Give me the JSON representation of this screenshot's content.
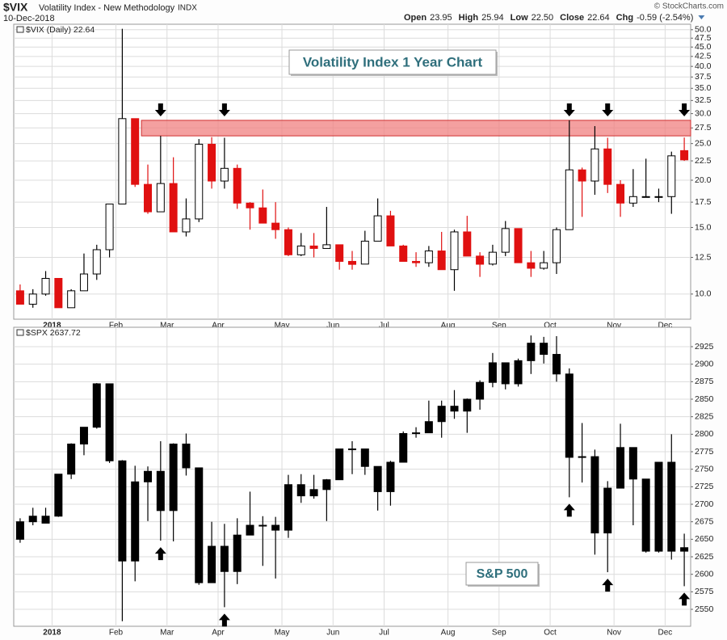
{
  "header": {
    "symbol": "$VIX",
    "name": "Volatility Index - New Methodology",
    "exchange": "INDX",
    "date": "10-Dec-2018",
    "copyright": "© StockCharts.com",
    "quote": [
      {
        "label": "Open",
        "value": "23.95"
      },
      {
        "label": "High",
        "value": "25.94"
      },
      {
        "label": "Low",
        "value": "22.50"
      },
      {
        "label": "Close",
        "value": "22.64"
      },
      {
        "label": "Chg",
        "value": "-0.59 (-2.54%)"
      }
    ]
  },
  "chart_data": [
    {
      "type": "candlestick",
      "legend": "$VIX (Daily) 22.64",
      "title": "Volatility Index 1 Year Chart",
      "log": true,
      "grid": true,
      "band": [
        26.2,
        28.8
      ],
      "band_color": "#f08080",
      "up_color": "#000000",
      "down_color": "#e01010",
      "categories": [
        null,
        null,
        null,
        "2018",
        null,
        null,
        null,
        null,
        "Feb",
        null,
        null,
        null,
        "Mar",
        null,
        null,
        null,
        "Apr",
        null,
        null,
        null,
        null,
        "May",
        null,
        null,
        null,
        "Jun",
        null,
        null,
        null,
        "Jul",
        null,
        null,
        null,
        null,
        "Aug",
        null,
        null,
        null,
        "Sep",
        null,
        null,
        null,
        "Oct",
        null,
        null,
        null,
        null,
        "Nov",
        null,
        null,
        null,
        "Dec",
        null
      ],
      "open": [
        10.2,
        9.4,
        10.0,
        11.0,
        9.2,
        10.2,
        11.3,
        13.1,
        17.3,
        29.1,
        19.5,
        16.5,
        19.6,
        14.6,
        15.8,
        24.9,
        19.9,
        21.5,
        17.4,
        16.9,
        15.4,
        14.8,
        12.7,
        13.4,
        13.2,
        13.5,
        12.2,
        12.0,
        13.8,
        16.1,
        13.4,
        12.2,
        12.1,
        13.0,
        11.6,
        14.6,
        12.6,
        12.0,
        12.9,
        14.9,
        12.1,
        11.7,
        12.1,
        14.8,
        21.3,
        19.9,
        24.2,
        19.5,
        17.4,
        18.1,
        18.1,
        18.1,
        23.95
      ],
      "high": [
        10.6,
        10.3,
        11.5,
        11.0,
        10.3,
        12.8,
        13.5,
        17.3,
        50.3,
        29.1,
        22.0,
        26.2,
        23.0,
        17.9,
        25.7,
        26.0,
        25.9,
        22.0,
        17.5,
        18.9,
        17.5,
        15.0,
        14.5,
        14.5,
        17.0,
        13.5,
        13.0,
        14.7,
        17.9,
        16.6,
        13.5,
        12.9,
        13.4,
        14.6,
        14.8,
        16.1,
        12.9,
        13.5,
        15.6,
        14.9,
        13.0,
        13.0,
        15.0,
        28.8,
        21.6,
        27.8,
        25.9,
        20.0,
        21.4,
        22.8,
        19.0,
        23.8,
        25.94
      ],
      "low": [
        9.4,
        9.2,
        9.9,
        9.2,
        9.2,
        10.2,
        10.9,
        12.5,
        17.3,
        19.2,
        16.3,
        16.5,
        14.6,
        14.2,
        15.5,
        19.0,
        19.0,
        16.8,
        14.8,
        15.4,
        14.0,
        12.6,
        12.6,
        12.5,
        13.2,
        11.6,
        11.6,
        12.0,
        13.8,
        13.4,
        12.2,
        11.8,
        11.8,
        11.6,
        10.2,
        12.6,
        11.1,
        11.9,
        12.6,
        12.1,
        11.1,
        11.6,
        11.3,
        14.8,
        16.0,
        18.3,
        18.5,
        16.0,
        17.0,
        18.0,
        17.5,
        16.3,
        22.5
      ],
      "close": [
        9.4,
        10.0,
        11.0,
        9.2,
        10.2,
        11.3,
        13.1,
        17.3,
        29.1,
        19.5,
        16.5,
        19.6,
        14.6,
        15.8,
        24.9,
        19.9,
        21.5,
        17.4,
        16.9,
        15.4,
        14.8,
        12.7,
        13.4,
        13.2,
        13.5,
        12.2,
        11.98,
        13.8,
        16.1,
        13.4,
        12.2,
        12.1,
        13.0,
        11.6,
        14.6,
        12.6,
        11.99,
        12.9,
        14.9,
        12.1,
        11.7,
        12.1,
        14.8,
        21.3,
        19.9,
        24.2,
        19.5,
        17.4,
        18.1,
        18.1,
        18.1,
        23.2,
        22.64
      ],
      "ylim": [
        8.58,
        51.7
      ],
      "yticks": [
        {
          "value": 10,
          "label": "10.0"
        },
        12.5,
        {
          "value": 15,
          "label": "15.0"
        },
        17.5,
        {
          "value": 20,
          "label": "20.0"
        },
        22.5,
        {
          "value": 25,
          "label": "25.0"
        },
        27.5,
        {
          "value": 30,
          "label": "30.0"
        },
        32.5,
        {
          "value": 35,
          "label": "35.0"
        },
        37.5,
        {
          "value": 40,
          "label": "40.0"
        },
        42.5,
        {
          "value": 45,
          "label": "45.0"
        },
        47.5,
        {
          "value": 50,
          "label": "50.0"
        }
      ]
    },
    {
      "type": "candlestick",
      "legend": "$SPX 2637.72",
      "title": "S&P 500",
      "log": false,
      "grid": true,
      "up_color": "#000000",
      "down_color": "#000000",
      "categories": [
        null,
        null,
        null,
        "2018",
        null,
        null,
        null,
        null,
        "Feb",
        null,
        null,
        null,
        "Mar",
        null,
        null,
        null,
        "Apr",
        null,
        null,
        null,
        null,
        "May",
        null,
        null,
        null,
        "Jun",
        null,
        null,
        null,
        "Jul",
        null,
        null,
        null,
        null,
        "Aug",
        null,
        null,
        null,
        "Sep",
        null,
        null,
        null,
        "Oct",
        null,
        null,
        null,
        null,
        "Nov",
        null,
        null,
        null,
        "Dec",
        null
      ],
      "open": [
        2650,
        2675,
        2683,
        2683,
        2743,
        2786,
        2810,
        2872,
        2762,
        2619,
        2732,
        2747,
        2691,
        2786,
        2752,
        2588,
        2640,
        2604,
        2656,
        2670,
        2670,
        2663,
        2728,
        2712,
        2721,
        2735,
        2779,
        2779,
        2754,
        2718,
        2760,
        2801,
        2802,
        2818,
        2840,
        2833,
        2850,
        2874,
        2902,
        2872,
        2905,
        2930,
        2914,
        2886,
        2767,
        2768,
        2659,
        2723,
        2781,
        2736,
        2633,
        2760,
        2633
      ],
      "high": [
        2680,
        2695,
        2695,
        2743,
        2787,
        2810,
        2873,
        2872,
        2763,
        2755,
        2754,
        2790,
        2787,
        2801,
        2752,
        2675,
        2672,
        2680,
        2718,
        2683,
        2682,
        2742,
        2743,
        2742,
        2736,
        2779,
        2790,
        2779,
        2754,
        2762,
        2804,
        2810,
        2848,
        2848,
        2863,
        2851,
        2877,
        2916,
        2902,
        2908,
        2941,
        2939,
        2940,
        2894,
        2816,
        2778,
        2733,
        2815,
        2781,
        2736,
        2760,
        2800,
        2658
      ],
      "low": [
        2645,
        2670,
        2673,
        2682,
        2736,
        2770,
        2808,
        2759,
        2533,
        2590,
        2676,
        2648,
        2647,
        2741,
        2585,
        2588,
        2553,
        2586,
        2656,
        2612,
        2594,
        2652,
        2702,
        2708,
        2676,
        2735,
        2743,
        2742,
        2691,
        2698,
        2760,
        2795,
        2802,
        2795,
        2822,
        2802,
        2835,
        2867,
        2864,
        2868,
        2886,
        2901,
        2875,
        2710,
        2731,
        2628,
        2603,
        2723,
        2670,
        2631,
        2631,
        2621,
        2583
      ],
      "close": [
        2675,
        2683,
        2673,
        2743,
        2786,
        2810,
        2872,
        2762,
        2619,
        2732,
        2747,
        2691,
        2786,
        2752,
        2588,
        2640,
        2604,
        2656,
        2670,
        2670,
        2663,
        2728,
        2712,
        2721,
        2735,
        2779,
        2779,
        2754,
        2718,
        2760,
        2801,
        2802,
        2818,
        2840,
        2833,
        2850,
        2874,
        2902,
        2872,
        2905,
        2930,
        2914,
        2886,
        2767,
        2768,
        2659,
        2723,
        2781,
        2736,
        2633,
        2760,
        2633,
        2638
      ],
      "ylim": [
        2525.8,
        2952.7
      ],
      "yticks": [
        2550,
        2575,
        2600,
        2625,
        2650,
        2675,
        2700,
        2725,
        2750,
        2775,
        2800,
        2825,
        2850,
        2875,
        2900,
        2925
      ]
    }
  ]
}
